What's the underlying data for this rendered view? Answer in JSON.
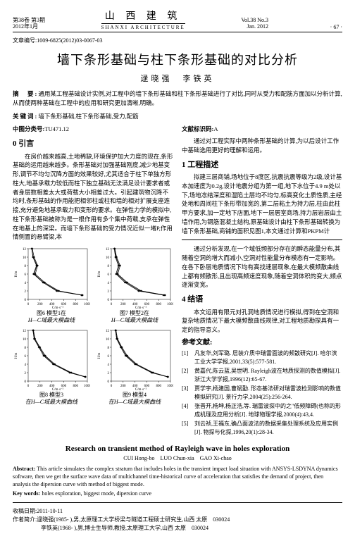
{
  "header": {
    "vol_cn": "第38卷 第3期",
    "date_cn": "2012年1月",
    "journal_cn": "山 西 建 筑",
    "journal_en": "SHANXI ARCHITECTURE",
    "vol_en": "Vol.38 No.3",
    "date_en": "Jan. 2012",
    "page": "· 67 ·"
  },
  "article_id": "文章编号:1009-6825(2012)03-0067-03",
  "title": "墙下条形基础与柱下条形基础的对比分析",
  "authors": "逯晓强　李铁英",
  "abstract_label": "摘　要:",
  "abstract": "通用某工程基础设计实例,对工程中的墙下条形基础和柱下条形基础进行了对比,同时从受力和配筋方面加以分析计算,从而使两种基础在工程中的应用和研究更加清晰,明确。",
  "keywords_label": "关键词:",
  "keywords": "墙下条形基础,柱下条形基础,受力,配筋",
  "clc_label": "中图分类号:",
  "clc": "TU471.12",
  "doc_code_label": "文献标识码:",
  "doc_code": "A",
  "sec0_title": "0 引言",
  "sec0_p1": "在房价越来越高,土地稀缺,环境保护加大力度的现在,条形基础的运用越来越多。条形基础对加强基础刚度,减少地基变形,调节不均匀沉降方面的效果较好,尤其适合于柱下单独方形柱大,地基承载力较低而柱下独立基础无法满足设计要求者或者身层数相差太大或荷载大小相差过大。引起建筑物沉降不均时,条形基础的作用能把相邻柱或柱和墙的相对扩展支座连接,充分避免地基承载力和变形的要求。在弹性力学的模拟中,柱下条形基础被称为是一根作用有多个集中荷载,支承在弹性在地基上的深梁。而墙下条形基础的受力情况近似一堵P,作用情侧置的悬臂梁,本",
  "sec0b_p1": "通过对工程实际中两种条形基础的计算,为以后设计工作中基础选用更好的理解和运用。",
  "sec1_title": "1 工程描述",
  "sec1_p1": "拟建三层商铺,场地位于8度区,抗震抗震等级为2级,设计基本加速度为0.2g,设计地震分组为第一组,地下水位于4.9 m处以下,场地冻结深度和湿陷土层均不均匀,标高变化土质性质,主经处地和周间柱下条形带加宽的,第二层粘土为持力层,柱由此柱甲方要求,加一定地下店面,地下一层居室商场,持力层岩层由土墙作用,为钢筋混凝土结构,原基础设计由柱下条形基础转换为墙下条形基础,商铺的面积见图1,本文通过计算和PKPM计",
  "charts": [
    {
      "axis_x_label": "C/m·s⁻²",
      "axis_y_label": "H/m",
      "x_range": [
        0,
        1000
      ],
      "x_ticks": [
        0,
        200,
        400,
        600,
        800,
        1000
      ],
      "y_range": [
        0,
        12
      ],
      "y_ticks": [
        0,
        2,
        4,
        6,
        8,
        10,
        12
      ],
      "line_color": "#000000",
      "series": [
        [
          [
            60,
            12
          ],
          [
            80,
            10
          ],
          [
            140,
            8
          ],
          [
            90,
            6
          ],
          [
            250,
            4
          ],
          [
            480,
            2
          ],
          [
            900,
            1
          ]
        ],
        [
          [
            70,
            12
          ],
          [
            100,
            10
          ],
          [
            160,
            8
          ],
          [
            120,
            6
          ],
          [
            280,
            4
          ],
          [
            520,
            2
          ],
          [
            920,
            1
          ]
        ],
        [
          [
            60,
            12
          ],
          [
            85,
            10
          ],
          [
            150,
            8
          ],
          [
            100,
            6
          ],
          [
            260,
            4
          ],
          [
            500,
            2
          ],
          [
            910,
            1
          ]
        ]
      ],
      "caption1": "图6 模型1在",
      "caption2": "H—C域最大模曲线"
    },
    {
      "axis_x_label": "C/m·s⁻²",
      "axis_y_label": "H/m",
      "x_range": [
        0,
        1000
      ],
      "x_ticks": [
        0,
        200,
        400,
        600,
        800,
        1000
      ],
      "y_range": [
        0,
        12
      ],
      "y_ticks": [
        0,
        2,
        4,
        6,
        8,
        10,
        12
      ],
      "line_color": "#000000",
      "series": [
        [
          [
            50,
            12
          ],
          [
            70,
            10
          ],
          [
            120,
            8
          ],
          [
            80,
            6
          ],
          [
            230,
            4
          ],
          [
            460,
            2
          ],
          [
            880,
            1
          ]
        ],
        [
          [
            60,
            12
          ],
          [
            90,
            10
          ],
          [
            150,
            8
          ],
          [
            110,
            6
          ],
          [
            270,
            4
          ],
          [
            510,
            2
          ],
          [
            910,
            1
          ]
        ],
        [
          [
            55,
            12
          ],
          [
            80,
            10
          ],
          [
            135,
            8
          ],
          [
            95,
            6
          ],
          [
            250,
            4
          ],
          [
            485,
            2
          ],
          [
            895,
            1
          ]
        ]
      ],
      "caption1": "图7 模型2在",
      "caption2": "H—C域最大模曲线"
    },
    {
      "axis_x_label": "C/m·s⁻²",
      "axis_y_label": "H/m",
      "x_range": [
        0,
        1000
      ],
      "x_ticks": [
        0,
        200,
        400,
        600,
        800,
        1000
      ],
      "y_range": [
        0,
        12
      ],
      "y_ticks": [
        0,
        2,
        4,
        6,
        8,
        10,
        12
      ],
      "line_color": "#000000",
      "series": [
        [
          [
            80,
            12
          ],
          [
            100,
            10
          ],
          [
            180,
            8
          ],
          [
            260,
            6
          ],
          [
            420,
            4
          ],
          [
            700,
            2
          ],
          [
            960,
            1
          ]
        ],
        [
          [
            90,
            12
          ],
          [
            115,
            10
          ],
          [
            200,
            8
          ],
          [
            290,
            6
          ],
          [
            450,
            4
          ],
          [
            730,
            2
          ],
          [
            970,
            1
          ]
        ],
        [
          [
            85,
            12
          ],
          [
            108,
            10
          ],
          [
            190,
            8
          ],
          [
            275,
            6
          ],
          [
            435,
            4
          ],
          [
            715,
            2
          ],
          [
            965,
            1
          ]
        ]
      ],
      "caption1": "图8 模型3",
      "caption2": "在H—C域最大模曲线"
    },
    {
      "axis_x_label": "C/m·s⁻²",
      "axis_y_label": "H/m",
      "x_range": [
        0,
        1000
      ],
      "x_ticks": [
        0,
        200,
        400,
        600,
        800,
        1000
      ],
      "y_range": [
        0,
        12
      ],
      "y_ticks": [
        0,
        2,
        4,
        6,
        8,
        10,
        12
      ],
      "line_color": "#000000",
      "series": [
        [
          [
            70,
            12
          ],
          [
            90,
            10
          ],
          [
            160,
            8
          ],
          [
            240,
            6
          ],
          [
            400,
            4
          ],
          [
            680,
            2
          ],
          [
            950,
            1
          ]
        ],
        [
          [
            80,
            12
          ],
          [
            105,
            10
          ],
          [
            180,
            8
          ],
          [
            270,
            6
          ],
          [
            430,
            4
          ],
          [
            710,
            2
          ],
          [
            960,
            1
          ]
        ],
        [
          [
            75,
            12
          ],
          [
            98,
            10
          ],
          [
            170,
            8
          ],
          [
            255,
            6
          ],
          [
            415,
            4
          ],
          [
            695,
            2
          ],
          [
            955,
            1
          ]
        ]
      ],
      "caption1": "图9 模型4",
      "caption2": "在H—C域最大模曲线"
    }
  ],
  "right_p1": "通过分析发现,在一个域低频部分存在的瞬态能量分布,其随着空洞的增大而减小,空洞对性能量分布模态有一定影响。在各下卧层地质情况下均有高找速层现象,在最大模频散曲线上都有频散形,且出现高频速度现象,随着空洞体积的变大,频点逐渐变宽。",
  "sec4_title": "4 结语",
  "sec4_p1": "本文运用有限元对孔洞地质情况进行模拟,得到在空洞和复杂地质情况下最大模频散曲线规律,对工程地质勘探具有一定的指导意义。",
  "ref_label": "参考文献:",
  "refs": [
    {
      "n": "[1]",
      "t": "凡友华,刘军璐. 层装介质中瑞雷面波的频散研究[J]. 哈尔滨工业大学学报,2001,33(5):577-581."
    },
    {
      "n": "[2]",
      "t": "黄嘉代,陈云蓝,吴世明. Rayleigh波在地质探测的数值模拟[J]. 浙江大学学报,1996(12):65-67."
    },
    {
      "n": "[3]",
      "t": "贾学宇,杨建国,曹斌勤. 形态基法研对瑞雷波检测影响的数值模拟研究[J]. 景行力学,2004(25):256-264."
    },
    {
      "n": "[4]",
      "t": "张晋开,杨坤,杨正浩,等. 瑞雷波探中的之\"低频障碍(也称的形成机理及应用分析[J]. 地球物理学报,2000(4):43,4."
    },
    {
      "n": "[5]",
      "t": "刘云祯,王福东,确凸面波法的数据采集处理系统及应用实例[J]. 物探与化探,1996,20(1):28-34."
    }
  ],
  "eng_title": "Research on transient method of Rayleigh wave in holes exploration",
  "eng_authors": "CUI Hong-bo　LUO Chun-xia　GAO Xi-chao",
  "eng_abs_label": "Abstract:",
  "eng_abs": "This article simulates the complex stratum that includes holes in the transient impact load situation with ANSYS-LSDYNA dynamics software, then we get the surface wave data of multichannel time-historical curve of acceleration that satisfies the demand of project, then analysis the dipersion curve with method of biggest mode.",
  "eng_kw_label": "Key words:",
  "eng_kw": "holes exploration, biggest mode, dipersion curve",
  "recv_date": "收稿日期:2011-10-11",
  "author_info1": "作者简介:逯晓强(1985- ),男,太原理工大学桥梁与隧道工程硕士研究生,山西 太原　030024",
  "author_info2": "　　　　　李铁英(1968- ),男,博士生导师,教授,太原理工大学,山西 太原　030024"
}
